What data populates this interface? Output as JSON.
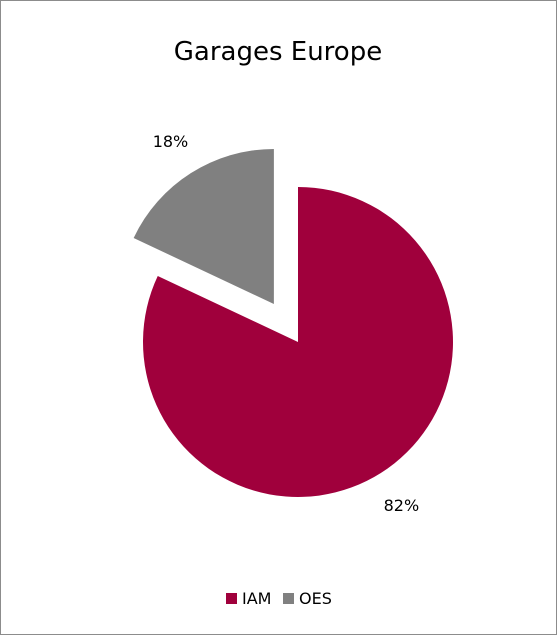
{
  "chart_data": {
    "type": "pie",
    "title": "Garages Europe",
    "categories": [
      "IAM",
      "OES"
    ],
    "values": [
      82,
      18
    ],
    "data_labels": [
      "82%",
      "18%"
    ],
    "colors": [
      "#a0003c",
      "#808080"
    ],
    "exploded": "OES",
    "legend": {
      "position": "bottom",
      "entries": [
        "IAM",
        "OES"
      ]
    }
  }
}
